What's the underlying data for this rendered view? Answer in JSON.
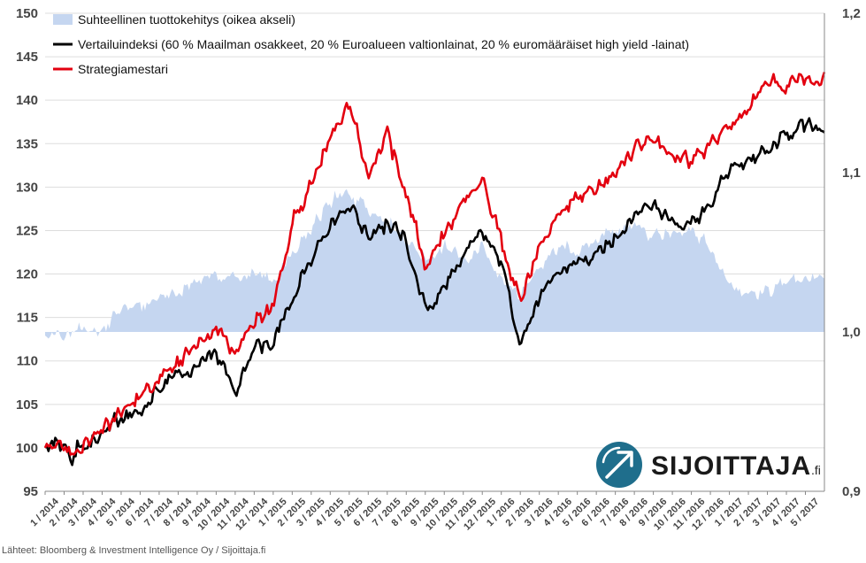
{
  "colors": {
    "relative_fill": "#c5d6f0",
    "benchmark": "#000000",
    "strategy": "#e3000f",
    "logo_circle": "#1f6e8c",
    "grid": "#dddddd"
  },
  "logo": {
    "icon": "arrow-up-right-icon",
    "text": "SIJOITTAJA",
    "suffix": ".fi"
  },
  "source": "Lähteet: Bloomberg & Investment Intelligence Oy / Sijoittaja.fi",
  "chart_data": {
    "type": "line",
    "legend_position": "top-left",
    "grid": "horizontal",
    "y_left": {
      "range": [
        95,
        150
      ],
      "ticks": [
        "95",
        "100",
        "105",
        "110",
        "115",
        "120",
        "125",
        "130",
        "135",
        "140",
        "145",
        "150"
      ]
    },
    "y_right": {
      "range": [
        0.9,
        1.2
      ],
      "ticks": [
        "0,9",
        "1,0",
        "1,1",
        "1,2"
      ]
    },
    "x_tick_labels": [
      "1 / 2014",
      "2 / 2014",
      "3 / 2014",
      "4 / 2014",
      "5 / 2014",
      "6 / 2014",
      "7 / 2014",
      "8 / 2014",
      "9 / 2014",
      "10 / 2014",
      "11 / 2014",
      "12 / 2014",
      "1 / 2015",
      "2 / 2015",
      "3 / 2015",
      "4 / 2015",
      "5 / 2015",
      "6 / 2015",
      "7 / 2015",
      "8 / 2015",
      "9 / 2015",
      "10 / 2015",
      "11 / 2015",
      "12 / 2015",
      "1 / 2016",
      "2 / 2016",
      "3 / 2016",
      "4 / 2016",
      "5 / 2016",
      "6 / 2016",
      "7 / 2016",
      "8 / 2016",
      "9 / 2016",
      "10 / 2016",
      "11 / 2016",
      "12 / 2016",
      "1 / 2017",
      "2 / 2017",
      "3 / 2017",
      "4 / 2017",
      "5 / 2017"
    ],
    "x_end_month": 41,
    "series": [
      {
        "name": "Suhteellinen tuottokehitys (oikea akseli)",
        "kind": "area",
        "axis": "right",
        "baseline": 1.0,
        "points": [
          [
            0,
            0.997
          ],
          [
            1,
            0.996
          ],
          [
            2,
            1.003
          ],
          [
            3,
            1.0
          ],
          [
            4,
            1.015
          ],
          [
            5,
            1.014
          ],
          [
            6,
            1.023
          ],
          [
            7,
            1.024
          ],
          [
            8,
            1.033
          ],
          [
            9,
            1.035
          ],
          [
            10,
            1.034
          ],
          [
            11,
            1.036
          ],
          [
            12,
            1.033
          ],
          [
            13,
            1.048
          ],
          [
            14,
            1.063
          ],
          [
            15,
            1.082
          ],
          [
            16,
            1.087
          ],
          [
            17,
            1.078
          ],
          [
            18,
            1.07
          ],
          [
            19,
            1.058
          ],
          [
            20,
            1.045
          ],
          [
            21,
            1.055
          ],
          [
            22,
            1.044
          ],
          [
            23,
            1.053
          ],
          [
            24,
            1.033
          ],
          [
            25,
            1.022
          ],
          [
            26,
            1.038
          ],
          [
            27,
            1.054
          ],
          [
            28,
            1.053
          ],
          [
            29,
            1.057
          ],
          [
            30,
            1.062
          ],
          [
            31,
            1.068
          ],
          [
            32,
            1.058
          ],
          [
            33,
            1.063
          ],
          [
            34,
            1.065
          ],
          [
            35,
            1.053
          ],
          [
            36,
            1.03
          ],
          [
            37,
            1.025
          ],
          [
            38,
            1.025
          ],
          [
            39,
            1.031
          ],
          [
            40,
            1.034
          ],
          [
            41,
            1.033
          ]
        ]
      },
      {
        "name": "Vertailuindeksi (60 % Maailman osakkeet, 20 % Euroalueen valtionlainat, 20 % euromääräiset high yield -lainat)",
        "kind": "line",
        "axis": "left",
        "points": [
          [
            0,
            100
          ],
          [
            1,
            100.5
          ],
          [
            1.3,
            98.5
          ],
          [
            2,
            100
          ],
          [
            3,
            101.5
          ],
          [
            4,
            103.5
          ],
          [
            5,
            104
          ],
          [
            6,
            107
          ],
          [
            7,
            108.5
          ],
          [
            8,
            109
          ],
          [
            9,
            111.3
          ],
          [
            10,
            106
          ],
          [
            11,
            111.5
          ],
          [
            12,
            112
          ],
          [
            13,
            117
          ],
          [
            14,
            122
          ],
          [
            15,
            126
          ],
          [
            16,
            128
          ],
          [
            17,
            124.5
          ],
          [
            18,
            126
          ],
          [
            19,
            123.5
          ],
          [
            20,
            116
          ],
          [
            21,
            118.5
          ],
          [
            22,
            122
          ],
          [
            23,
            124.5
          ],
          [
            24,
            121.5
          ],
          [
            25,
            112
          ],
          [
            26,
            117
          ],
          [
            27,
            120
          ],
          [
            28,
            121.5
          ],
          [
            29,
            122
          ],
          [
            30,
            124
          ],
          [
            31,
            127
          ],
          [
            32,
            128
          ],
          [
            33,
            126
          ],
          [
            34,
            126
          ],
          [
            35,
            128
          ],
          [
            36,
            132
          ],
          [
            37,
            133
          ],
          [
            38,
            134
          ],
          [
            39,
            136
          ],
          [
            40,
            137
          ],
          [
            41,
            137
          ]
        ]
      },
      {
        "name": "Strategiamestari",
        "kind": "line",
        "axis": "left",
        "points": [
          [
            0,
            100
          ],
          [
            1,
            100.5
          ],
          [
            1.3,
            98.5
          ],
          [
            2,
            100.5
          ],
          [
            3,
            102
          ],
          [
            4,
            104
          ],
          [
            5,
            106
          ],
          [
            6,
            108
          ],
          [
            7,
            110
          ],
          [
            8,
            111.5
          ],
          [
            9,
            114
          ],
          [
            10,
            110.5
          ],
          [
            11,
            114.5
          ],
          [
            12,
            116
          ],
          [
            13,
            126
          ],
          [
            14,
            130.5
          ],
          [
            15,
            136
          ],
          [
            16,
            139.5
          ],
          [
            17,
            131.5
          ],
          [
            18,
            136
          ],
          [
            19,
            129
          ],
          [
            20,
            121
          ],
          [
            21,
            124.5
          ],
          [
            22,
            128
          ],
          [
            23,
            130.5
          ],
          [
            24,
            124
          ],
          [
            25,
            117
          ],
          [
            26,
            122.5
          ],
          [
            27,
            127
          ],
          [
            28,
            129
          ],
          [
            29,
            129.5
          ],
          [
            30,
            132
          ],
          [
            31,
            134.5
          ],
          [
            32,
            135.5
          ],
          [
            33,
            134
          ],
          [
            34,
            133
          ],
          [
            35,
            135
          ],
          [
            36,
            137
          ],
          [
            37,
            139
          ],
          [
            38,
            142
          ],
          [
            39,
            141.5
          ],
          [
            40,
            142.5
          ],
          [
            41,
            142.5
          ]
        ]
      }
    ]
  }
}
